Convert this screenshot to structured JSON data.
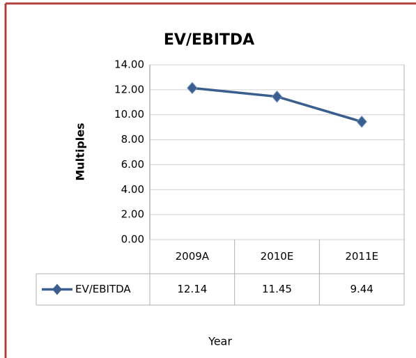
{
  "chart_data": {
    "type": "line",
    "title": "EV/EBITDA",
    "x_label": "Year",
    "y_label": "Multiples",
    "categories": [
      "2009A",
      "2010E",
      "2011E"
    ],
    "series": [
      {
        "name": "EV/EBITDA",
        "color": "#3a5f8f",
        "values": [
          12.14,
          11.45,
          9.44
        ]
      }
    ],
    "ylim": [
      0,
      14
    ],
    "yticks": [
      {
        "value": 0,
        "label": "0.00"
      },
      {
        "value": 2,
        "label": "2.00"
      },
      {
        "value": 4,
        "label": "4.00"
      },
      {
        "value": 6,
        "label": "6.00"
      },
      {
        "value": 8,
        "label": "8.00"
      },
      {
        "value": 10,
        "label": "10.00"
      },
      {
        "value": 12,
        "label": "12.00"
      },
      {
        "value": 14,
        "label": "14.00"
      }
    ],
    "grid": true,
    "data_table": true
  }
}
